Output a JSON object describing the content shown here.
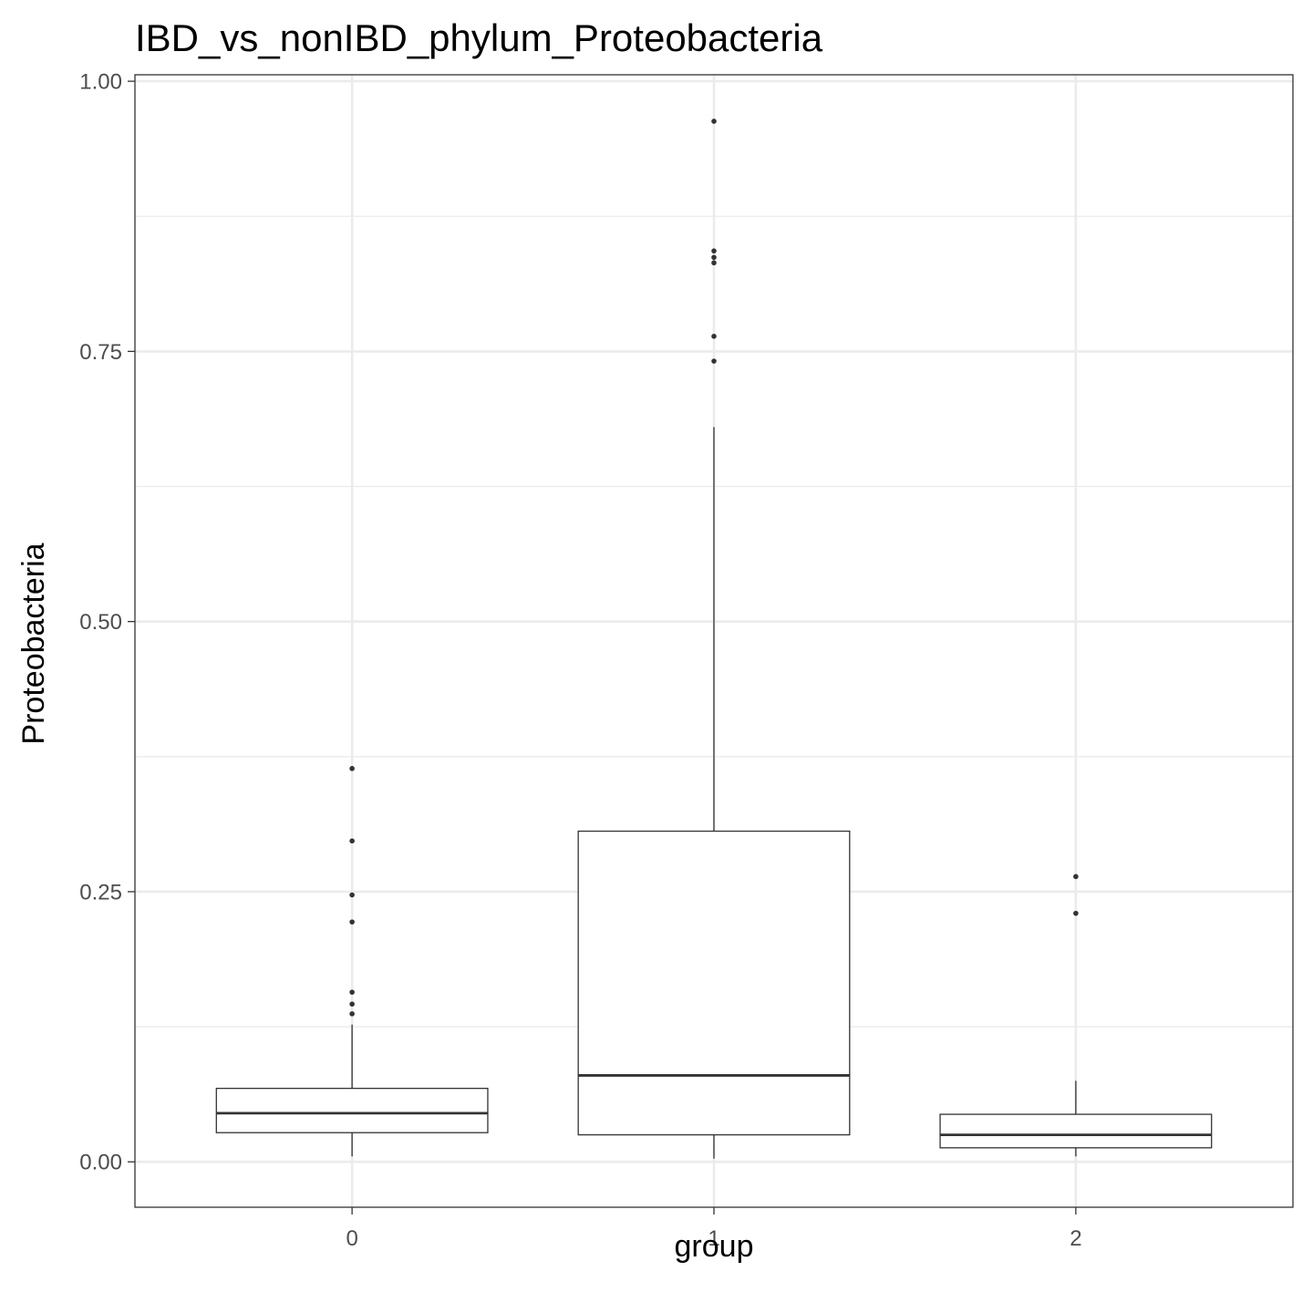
{
  "chart_data": {
    "type": "boxplot",
    "title": "IBD_vs_nonIBD_phylum_Proteobacteria",
    "xlabel": "group",
    "ylabel": "Proteobacteria",
    "categories": [
      "0",
      "1",
      "2"
    ],
    "ylim": [
      -0.042,
      1.006
    ],
    "y_ticks": [
      0,
      0.25,
      0.5,
      0.75,
      1
    ],
    "y_tick_labels": [
      "0.00",
      "0.25",
      "0.50",
      "0.75",
      "1.00"
    ],
    "y_minor_ticks": [
      0.125,
      0.375,
      0.625,
      0.875
    ],
    "grid": true,
    "boxes": [
      {
        "category": "0",
        "whisker_low": 0.005,
        "q1": 0.027,
        "median": 0.045,
        "q3": 0.068,
        "whisker_high": 0.127,
        "outliers": [
          0.364,
          0.297,
          0.247,
          0.222,
          0.157,
          0.146,
          0.137
        ]
      },
      {
        "category": "1",
        "whisker_low": 0.003,
        "q1": 0.025,
        "median": 0.08,
        "q3": 0.306,
        "whisker_high": 0.68,
        "outliers": [
          0.963,
          0.843,
          0.837,
          0.832,
          0.764,
          0.741
        ]
      },
      {
        "category": "2",
        "whisker_low": 0.005,
        "q1": 0.013,
        "median": 0.025,
        "q3": 0.044,
        "whisker_high": 0.075,
        "outliers": [
          0.264,
          0.23
        ]
      }
    ],
    "colors": {
      "grid": "#ebebeb",
      "box_line": "#333333",
      "panel_border": "#333333",
      "tick_label": "#4d4d4d"
    }
  }
}
